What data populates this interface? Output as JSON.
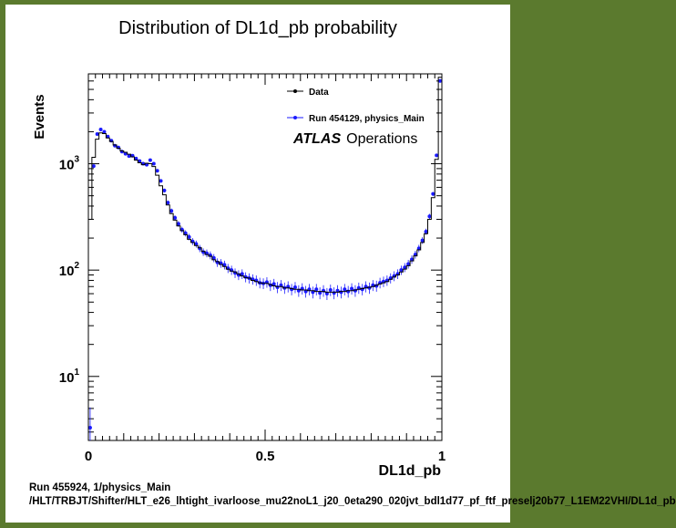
{
  "footer": {
    "run": "Run 455924, 1/physics_Main",
    "path": "/HLT/TRBJT/Shifter/HLT_e26_lhtight_ivarloose_mu22noL1_j20_0eta290_020jvt_bdl1d77_pf_ftf_preselj20b77_L1EM22VHI/DL1d_pb"
  },
  "chart_data": {
    "type": "histogram",
    "title": "Distribution of DL1d_pb probability",
    "xlabel": "DL1d_pb",
    "ylabel": "Events",
    "xlim": [
      0,
      1
    ],
    "ylim": [
      2.5,
      7000
    ],
    "yscale": "log",
    "x_ticks": [
      0,
      0.5,
      1
    ],
    "x_tick_labels": [
      "0",
      "0.5",
      "1"
    ],
    "y_ticks": [
      10,
      100,
      1000
    ],
    "y_tick_labels": [
      "10",
      "10",
      "10"
    ],
    "y_tick_exponents": [
      "1",
      "2",
      "3"
    ],
    "grid": false,
    "legend_position": "top-right",
    "watermark": {
      "bold": "ATLAS",
      "text": "Operations"
    },
    "colors": {
      "data": "#000000",
      "reference": "#1a1aff",
      "border": "#5b7a2e"
    },
    "x": [
      0.005,
      0.015,
      0.025,
      0.035,
      0.045,
      0.055,
      0.065,
      0.075,
      0.085,
      0.095,
      0.105,
      0.115,
      0.125,
      0.135,
      0.145,
      0.155,
      0.165,
      0.175,
      0.185,
      0.195,
      0.205,
      0.215,
      0.225,
      0.235,
      0.245,
      0.255,
      0.265,
      0.275,
      0.285,
      0.295,
      0.305,
      0.315,
      0.325,
      0.335,
      0.345,
      0.355,
      0.365,
      0.375,
      0.385,
      0.395,
      0.405,
      0.415,
      0.425,
      0.435,
      0.445,
      0.455,
      0.465,
      0.475,
      0.485,
      0.495,
      0.505,
      0.515,
      0.525,
      0.535,
      0.545,
      0.555,
      0.565,
      0.575,
      0.585,
      0.595,
      0.605,
      0.615,
      0.625,
      0.635,
      0.645,
      0.655,
      0.665,
      0.675,
      0.685,
      0.695,
      0.705,
      0.715,
      0.725,
      0.735,
      0.745,
      0.755,
      0.765,
      0.775,
      0.785,
      0.795,
      0.805,
      0.815,
      0.825,
      0.835,
      0.845,
      0.855,
      0.865,
      0.875,
      0.885,
      0.895,
      0.905,
      0.915,
      0.925,
      0.935,
      0.945,
      0.955,
      0.965,
      0.975,
      0.985,
      0.995
    ],
    "series": [
      {
        "name": "Data",
        "style": "step",
        "values": [
          300,
          1150,
          1700,
          1950,
          1920,
          1750,
          1620,
          1500,
          1400,
          1320,
          1280,
          1230,
          1160,
          1080,
          1020,
          980,
          1010,
          1000,
          940,
          780,
          620,
          510,
          410,
          340,
          295,
          260,
          235,
          215,
          195,
          182,
          170,
          162,
          150,
          140,
          135,
          125,
          120,
          113,
          108,
          102,
          98,
          96,
          92,
          88,
          85,
          84,
          80,
          78,
          76,
          75,
          75,
          73,
          71,
          70,
          70,
          68,
          68,
          67,
          66,
          66,
          65,
          65,
          64,
          64,
          63,
          63,
          63,
          62,
          62,
          62,
          62,
          63,
          63,
          64,
          64,
          65,
          66,
          67,
          68,
          69,
          70,
          72,
          74,
          76,
          78,
          82,
          86,
          90,
          96,
          102,
          110,
          122,
          136,
          155,
          182,
          220,
          300,
          480,
          1100,
          6500
        ]
      },
      {
        "name": "Run 454129, physics_Main",
        "style": "points",
        "values": [
          3.3,
          950,
          1900,
          2100,
          2000,
          1800,
          1650,
          1480,
          1420,
          1300,
          1240,
          1180,
          1190,
          1120,
          1060,
          1000,
          980,
          1080,
          1000,
          860,
          690,
          560,
          430,
          360,
          310,
          272,
          240,
          222,
          205,
          186,
          176,
          160,
          148,
          144,
          138,
          130,
          118,
          116,
          112,
          104,
          100,
          94,
          90,
          92,
          86,
          84,
          82,
          80,
          76,
          75,
          77,
          72,
          74,
          69,
          72,
          68,
          70,
          66,
          69,
          64,
          67,
          63,
          66,
          62,
          66,
          61,
          64,
          60,
          65,
          61,
          64,
          62,
          66,
          63,
          67,
          64,
          68,
          66,
          70,
          68,
          72,
          71,
          76,
          78,
          80,
          84,
          88,
          92,
          100,
          106,
          114,
          126,
          140,
          160,
          190,
          230,
          320,
          520,
          1200,
          6000
        ]
      }
    ]
  }
}
